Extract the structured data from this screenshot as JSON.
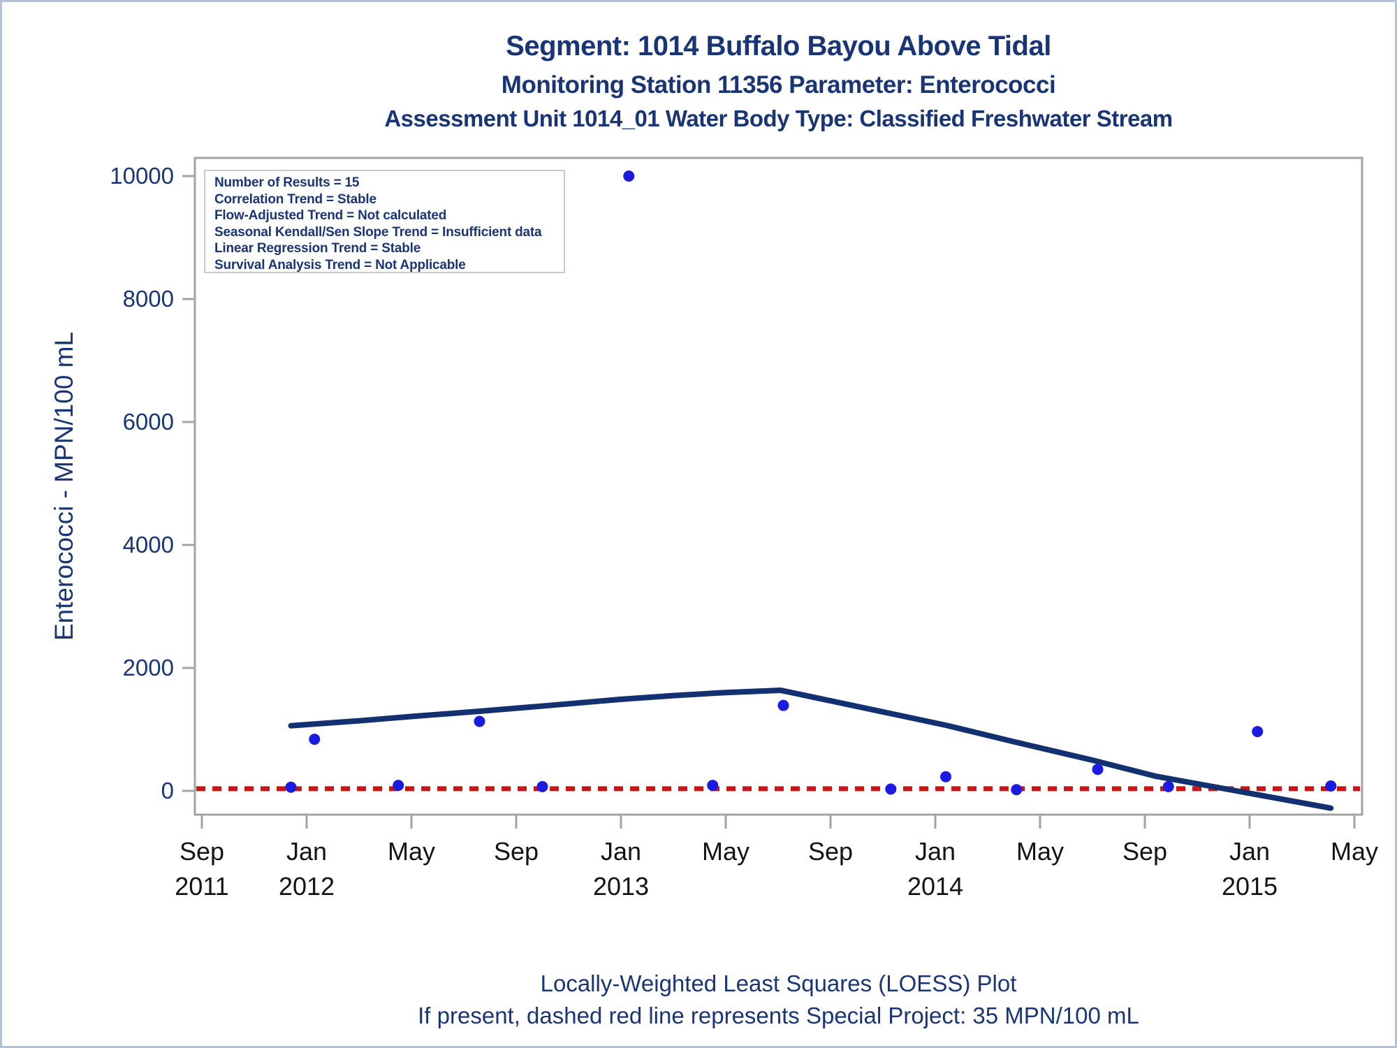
{
  "titles": {
    "line1": "Segment: 1014  Buffalo Bayou Above Tidal",
    "line2": "Monitoring Station 11356 Parameter: Enterococci",
    "line3": "Assessment Unit 1014_01   Water Body Type: Classified Freshwater Stream"
  },
  "stats_box": {
    "lines": [
      "Number of Results = 15",
      "Correlation Trend = Stable",
      "Flow-Adjusted Trend = Not calculated",
      "Seasonal Kendall/Sen Slope Trend = Insufficient data",
      "Linear Regression Trend = Stable",
      "Survival Analysis Trend = Not Applicable"
    ]
  },
  "footnotes": {
    "line1": "Locally-Weighted Least Squares (LOESS) Plot",
    "line2": "If present, dashed red line represents Special Project: 35 MPN/100 mL"
  },
  "chart_data": {
    "type": "scatter",
    "title": "Segment: 1014  Buffalo Bayou Above Tidal",
    "xlabel": "",
    "ylabel": "Enterococci - MPN/100 mL",
    "ylim": [
      -390,
      10300
    ],
    "grid": false,
    "legend_position": "none",
    "y_ticks": [
      0,
      2000,
      4000,
      6000,
      8000,
      10000
    ],
    "x_ticks": [
      {
        "month": "Sep",
        "year": "2011",
        "m": 0
      },
      {
        "month": "Jan",
        "year": "2012",
        "m": 4
      },
      {
        "month": "May",
        "year": "",
        "m": 8
      },
      {
        "month": "Sep",
        "year": "",
        "m": 12
      },
      {
        "month": "Jan",
        "year": "2013",
        "m": 16
      },
      {
        "month": "May",
        "year": "",
        "m": 20
      },
      {
        "month": "Sep",
        "year": "",
        "m": 24
      },
      {
        "month": "Jan",
        "year": "2014",
        "m": 28
      },
      {
        "month": "May",
        "year": "",
        "m": 32
      },
      {
        "month": "Sep",
        "year": "",
        "m": 36
      },
      {
        "month": "Jan",
        "year": "2015",
        "m": 40
      },
      {
        "month": "May",
        "year": "",
        "m": 44
      }
    ],
    "x_axis_note": "m = months after Sep 2011",
    "points": [
      {
        "date": "2011-12",
        "m": 3.4,
        "value": 60
      },
      {
        "date": "2012-01",
        "m": 4.3,
        "value": 840
      },
      {
        "date": "2012-04",
        "m": 7.5,
        "value": 90
      },
      {
        "date": "2012-07",
        "m": 10.6,
        "value": 1130
      },
      {
        "date": "2012-10",
        "m": 13.0,
        "value": 70
      },
      {
        "date": "2013-01",
        "m": 16.3,
        "value": 10000
      },
      {
        "date": "2013-04",
        "m": 19.5,
        "value": 90
      },
      {
        "date": "2013-07",
        "m": 22.2,
        "value": 1390
      },
      {
        "date": "2013-11",
        "m": 26.3,
        "value": 30
      },
      {
        "date": "2014-01",
        "m": 28.4,
        "value": 230
      },
      {
        "date": "2014-04",
        "m": 31.1,
        "value": 20
      },
      {
        "date": "2014-07",
        "m": 34.2,
        "value": 350
      },
      {
        "date": "2014-10",
        "m": 36.9,
        "value": 70
      },
      {
        "date": "2015-01",
        "m": 40.3,
        "value": 965
      },
      {
        "date": "2015-04",
        "m": 43.1,
        "value": 80
      }
    ],
    "loess_line": [
      [
        3.4,
        1060
      ],
      [
        6,
        1140
      ],
      [
        8,
        1210
      ],
      [
        10.6,
        1295
      ],
      [
        13,
        1380
      ],
      [
        16,
        1490
      ],
      [
        18,
        1550
      ],
      [
        20,
        1600
      ],
      [
        22.1,
        1636
      ],
      [
        24,
        1465
      ],
      [
        26,
        1285
      ],
      [
        28.4,
        1068
      ],
      [
        31,
        800
      ],
      [
        34,
        500
      ],
      [
        36.4,
        240
      ],
      [
        39.5,
        0
      ],
      [
        43.1,
        -280
      ]
    ],
    "reference_line": {
      "value": 35,
      "style": "dashed",
      "meaning": "Special Project: 35 MPN/100 mL"
    },
    "colors": {
      "point": "#1c1ce1",
      "loess": "#133170",
      "reference": "#cc1414",
      "axis": "#a3a3a3",
      "title_text": "#1a3575",
      "y_tick_text": "#1a3575",
      "x_tick_text": "#141414"
    }
  }
}
